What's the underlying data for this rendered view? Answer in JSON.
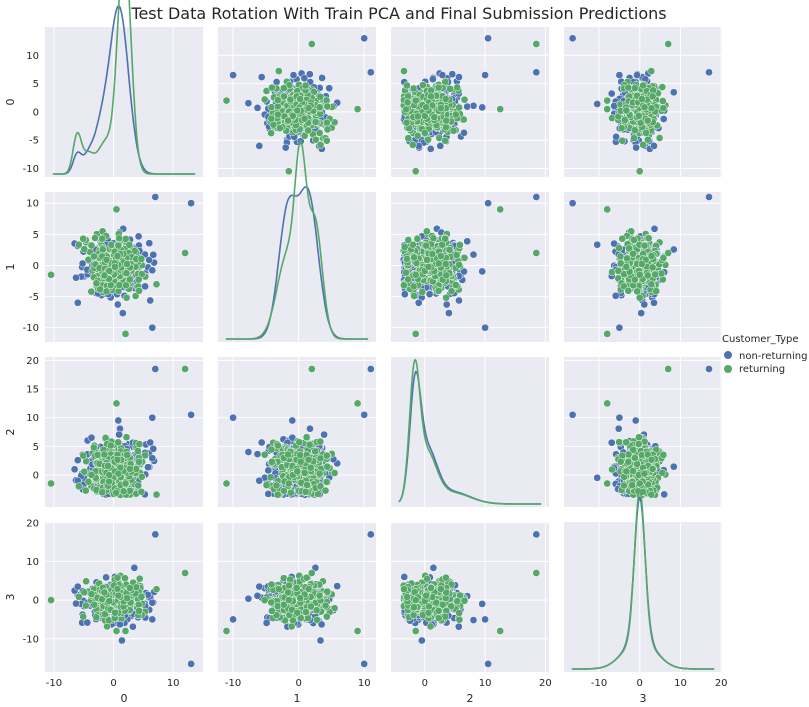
{
  "chart_data": {
    "type": "scatter",
    "title": "Test Data Rotation With Train PCA and Final Submission Predictions",
    "variables": [
      "0",
      "1",
      "2",
      "3"
    ],
    "grid": true,
    "legend": {
      "title": "Customer_Type",
      "placement": "right",
      "entries": [
        {
          "label": "non-returning",
          "color": "#4C72B0"
        },
        {
          "label": "returning",
          "color": "#55A868"
        }
      ]
    },
    "ranges": {
      "0": [
        -11.5,
        15
      ],
      "1": [
        -12.3,
        11.8
      ],
      "2": [
        -5.6,
        20.6
      ],
      "3": [
        -18.6,
        20.2
      ]
    },
    "ticks": {
      "0": [
        -10,
        0,
        10
      ],
      "1": [
        -10,
        0,
        10
      ],
      "2": [
        0,
        10,
        20
      ],
      "3": [
        -10,
        0,
        10,
        20
      ]
    },
    "y_ticks": {
      "0": [
        -10,
        -5,
        0,
        5,
        10
      ],
      "1": [
        -10,
        -5,
        0,
        5,
        10
      ],
      "2": [
        0,
        5,
        10,
        15,
        20
      ],
      "3": [
        -10,
        0,
        10,
        20
      ]
    },
    "kde_density_ylim": {
      "0": [
        0,
        0.17
      ],
      "1": [
        0,
        0.15
      ],
      "2": [
        0,
        0.27
      ],
      "3": [
        0,
        0.19
      ]
    },
    "diagonal_kde": {
      "0": {
        "non-returning": [
          {
            "mu": -6.1,
            "sd": 0.7,
            "w": 0.04
          },
          {
            "mu": -4.3,
            "sd": 0.9,
            "w": 0.04
          },
          {
            "mu": -2.2,
            "sd": 1.2,
            "w": 0.13
          },
          {
            "mu": 0.9,
            "sd": 1.6,
            "w": 0.79
          }
        ],
        "returning": [
          {
            "mu": -6.1,
            "sd": 0.7,
            "w": 0.08
          },
          {
            "mu": -4.3,
            "sd": 0.9,
            "w": 0.05
          },
          {
            "mu": -1.4,
            "sd": 1.3,
            "w": 0.12
          },
          {
            "mu": 1.8,
            "sd": 1.1,
            "w": 0.75
          }
        ]
      },
      "1": {
        "non-returning": [
          {
            "mu": -1.7,
            "sd": 1.4,
            "w": 0.45
          },
          {
            "mu": 1.5,
            "sd": 1.5,
            "w": 0.55
          }
        ],
        "returning": [
          {
            "mu": -1.7,
            "sd": 1.6,
            "w": 0.35
          },
          {
            "mu": 0.3,
            "sd": 0.85,
            "w": 0.32
          },
          {
            "mu": 2.5,
            "sd": 1.1,
            "w": 0.33
          }
        ]
      },
      "2": {
        "non-returning": [
          {
            "mu": -1.6,
            "sd": 0.9,
            "w": 0.45
          },
          {
            "mu": 0.4,
            "sd": 1.6,
            "w": 0.38
          },
          {
            "mu": 4.5,
            "sd": 3.0,
            "w": 0.17
          }
        ],
        "returning": [
          {
            "mu": -1.7,
            "sd": 0.85,
            "w": 0.48
          },
          {
            "mu": 0.3,
            "sd": 1.6,
            "w": 0.36
          },
          {
            "mu": 4.5,
            "sd": 3.0,
            "w": 0.16
          }
        ]
      },
      "3": {
        "non-returning": [
          {
            "mu": 0,
            "sd": 1.3,
            "w": 0.6
          },
          {
            "mu": 0,
            "sd": 3.8,
            "w": 0.4
          }
        ],
        "returning": [
          {
            "mu": 0,
            "sd": 1.25,
            "w": 0.62
          },
          {
            "mu": 0,
            "sd": 3.9,
            "w": 0.38
          }
        ]
      }
    },
    "scatter_cloud": {
      "0": {
        "center": 0.3,
        "spread": 2.6,
        "min": -9.5,
        "max": 7.5
      },
      "1": {
        "center": 0.0,
        "spread": 2.2,
        "min": -9.0,
        "max": 8.5
      },
      "2": {
        "center": 1.0,
        "spread": 2.6,
        "min": -3.5,
        "max": 12.0
      },
      "3": {
        "center": 0.0,
        "spread": 2.6,
        "min": -10.5,
        "max": 10.0
      }
    },
    "outliers": [
      [
        7.0,
        11.0,
        18.5,
        17.0
      ],
      [
        12.0,
        2.0,
        18.5,
        7.0
      ],
      [
        13.0,
        10.0,
        10.5,
        -16.5
      ],
      [
        -10.5,
        -1.5,
        -1.5,
        0.0
      ],
      [
        -6.0,
        -6.0,
        -1.0,
        3.5
      ],
      [
        2.0,
        -11.0,
        -1.5,
        -8.0
      ],
      [
        6.5,
        -10.0,
        10.0,
        -5.0
      ],
      [
        0.5,
        9.0,
        12.5,
        -8.0
      ]
    ]
  }
}
